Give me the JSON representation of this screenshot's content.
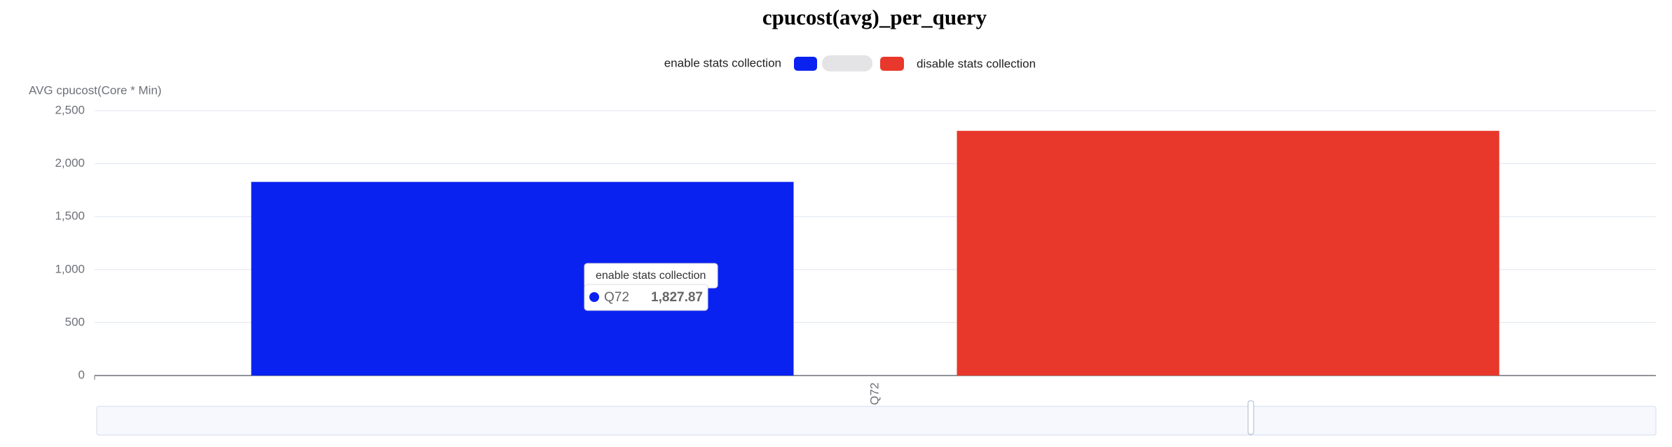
{
  "chart_data": {
    "type": "bar",
    "title": "cpucost(avg)_per_query",
    "y_label": "AVG cpucost(Core * Min)",
    "categories": [
      "Q72"
    ],
    "series": [
      {
        "name": "enable stats collection",
        "color": "#0a22f0",
        "values": [
          1827.87
        ],
        "value_labels": [
          "1,827.87"
        ]
      },
      {
        "name": "disable stats collection",
        "color": "#e8382b",
        "values": [
          2310
        ]
      }
    ],
    "ylim": [
      0,
      2500
    ],
    "yticks": [
      0,
      500,
      {
        "value": 1000,
        "label": "1,000"
      },
      {
        "value": 1500,
        "label": "1,500"
      },
      {
        "value": 2000,
        "label": "2,000"
      },
      {
        "value": 2500,
        "label": "2,500"
      }
    ],
    "grid": true
  }
}
